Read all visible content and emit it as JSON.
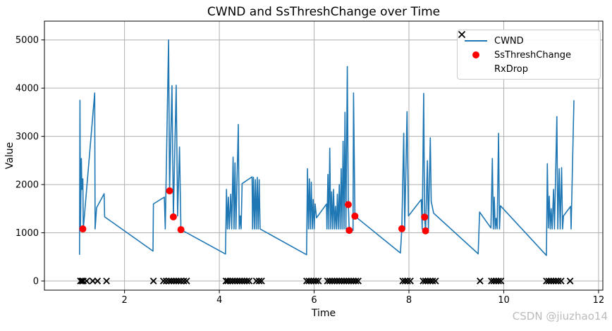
{
  "watermark": {
    "text": "CSDN @jiuzhao14",
    "color": "#b9bbbd"
  },
  "style": {
    "grid_color": "#b0b0b0",
    "frame_color": "#000000",
    "tick_label_color": "#000000",
    "background": "#ffffff"
  },
  "chart_data": {
    "type": "line",
    "title": "CWND and SsThreshChange over Time",
    "xlabel": "Time",
    "ylabel": "Value",
    "xlim": [
      0.31,
      12.09
    ],
    "ylim": [
      -190,
      5390
    ],
    "xticks": [
      2,
      4,
      6,
      8,
      10,
      12
    ],
    "yticks": [
      0,
      1000,
      2000,
      3000,
      4000,
      5000
    ],
    "grid": true,
    "legend": {
      "position": "top-right",
      "entries": [
        {
          "label": "CWND",
          "marker": "line",
          "color": "#1f77b4"
        },
        {
          "label": "SsThreshChange",
          "marker": "dot",
          "color": "#ff0000"
        },
        {
          "label": "RxDrop",
          "marker": "x",
          "color": "#000000"
        }
      ]
    },
    "series": [
      {
        "name": "CWND",
        "type": "line",
        "color": "#1f77b4",
        "line_width": 1.6,
        "points": [
          [
            1.05,
            545
          ],
          [
            1.06,
            3750
          ],
          [
            1.07,
            1070
          ],
          [
            1.09,
            2540
          ],
          [
            1.1,
            1900
          ],
          [
            1.12,
            2120
          ],
          [
            1.13,
            1070
          ],
          [
            1.37,
            3900
          ],
          [
            1.38,
            1080
          ],
          [
            1.41,
            1520
          ],
          [
            1.57,
            1810
          ],
          [
            1.58,
            1330
          ],
          [
            2.6,
            620
          ],
          [
            2.61,
            1600
          ],
          [
            2.84,
            1740
          ],
          [
            2.86,
            1080
          ],
          [
            2.93,
            5000
          ],
          [
            2.95,
            1870
          ],
          [
            3.0,
            4050
          ],
          [
            3.03,
            1330
          ],
          [
            3.09,
            4060
          ],
          [
            3.12,
            1350
          ],
          [
            3.16,
            2780
          ],
          [
            3.19,
            1065
          ],
          [
            4.13,
            560
          ],
          [
            4.15,
            1900
          ],
          [
            4.17,
            1080
          ],
          [
            4.19,
            1740
          ],
          [
            4.21,
            1080
          ],
          [
            4.24,
            1800
          ],
          [
            4.26,
            1080
          ],
          [
            4.29,
            2570
          ],
          [
            4.31,
            1080
          ],
          [
            4.33,
            2450
          ],
          [
            4.35,
            1080
          ],
          [
            4.4,
            3245
          ],
          [
            4.42,
            1080
          ],
          [
            4.44,
            1350
          ],
          [
            4.46,
            1080
          ],
          [
            4.48,
            2020
          ],
          [
            4.69,
            2160
          ],
          [
            4.7,
            1080
          ],
          [
            4.72,
            2150
          ],
          [
            4.74,
            1080
          ],
          [
            4.76,
            2100
          ],
          [
            4.78,
            1080
          ],
          [
            4.8,
            2150
          ],
          [
            4.82,
            1080
          ],
          [
            4.84,
            2100
          ],
          [
            4.86,
            1080
          ],
          [
            5.84,
            545
          ],
          [
            5.86,
            2330
          ],
          [
            5.88,
            1080
          ],
          [
            5.9,
            2120
          ],
          [
            5.92,
            1080
          ],
          [
            5.94,
            2050
          ],
          [
            5.96,
            1080
          ],
          [
            5.98,
            1690
          ],
          [
            6.0,
            1080
          ],
          [
            6.02,
            1600
          ],
          [
            6.05,
            1310
          ],
          [
            6.26,
            1595
          ],
          [
            6.27,
            1080
          ],
          [
            6.29,
            2210
          ],
          [
            6.31,
            1080
          ],
          [
            6.33,
            2755
          ],
          [
            6.35,
            1080
          ],
          [
            6.37,
            1850
          ],
          [
            6.39,
            1080
          ],
          [
            6.41,
            1900
          ],
          [
            6.43,
            1080
          ],
          [
            6.45,
            1550
          ],
          [
            6.47,
            1080
          ],
          [
            6.49,
            1800
          ],
          [
            6.51,
            1080
          ],
          [
            6.53,
            2000
          ],
          [
            6.55,
            1080
          ],
          [
            6.57,
            2330
          ],
          [
            6.59,
            1080
          ],
          [
            6.61,
            2900
          ],
          [
            6.63,
            1080
          ],
          [
            6.65,
            3500
          ],
          [
            6.67,
            1080
          ],
          [
            6.7,
            4450
          ],
          [
            6.72,
            1585
          ],
          [
            6.74,
            1050
          ],
          [
            6.82,
            1050
          ],
          [
            6.83,
            3900
          ],
          [
            6.86,
            1345
          ],
          [
            7.82,
            580
          ],
          [
            7.85,
            1084
          ],
          [
            7.89,
            3065
          ],
          [
            7.91,
            1100
          ],
          [
            7.96,
            3512
          ],
          [
            7.99,
            1350
          ],
          [
            8.26,
            1690
          ],
          [
            8.28,
            1080
          ],
          [
            8.31,
            3890
          ],
          [
            8.33,
            1325
          ],
          [
            8.35,
            1040
          ],
          [
            8.39,
            2495
          ],
          [
            8.41,
            1080
          ],
          [
            8.45,
            2970
          ],
          [
            8.47,
            1650
          ],
          [
            8.52,
            1406
          ],
          [
            9.46,
            564
          ],
          [
            9.49,
            1430
          ],
          [
            9.73,
            1100
          ],
          [
            9.76,
            2540
          ],
          [
            9.78,
            1080
          ],
          [
            9.8,
            1740
          ],
          [
            9.82,
            1080
          ],
          [
            9.84,
            1300
          ],
          [
            9.86,
            1080
          ],
          [
            9.89,
            3065
          ],
          [
            9.91,
            1080
          ],
          [
            9.93,
            1560
          ],
          [
            10.9,
            530
          ],
          [
            10.92,
            2434
          ],
          [
            10.94,
            1100
          ],
          [
            10.96,
            1760
          ],
          [
            10.98,
            1080
          ],
          [
            11.0,
            1500
          ],
          [
            11.02,
            1080
          ],
          [
            11.05,
            1900
          ],
          [
            11.07,
            1080
          ],
          [
            11.12,
            3410
          ],
          [
            11.14,
            1080
          ],
          [
            11.17,
            2330
          ],
          [
            11.19,
            1080
          ],
          [
            11.22,
            2350
          ],
          [
            11.24,
            1080
          ],
          [
            11.26,
            1350
          ],
          [
            11.41,
            1548
          ],
          [
            11.42,
            1080
          ],
          [
            11.48,
            3750
          ]
        ]
      },
      {
        "name": "SsThreshChange",
        "type": "scatter",
        "marker": "circle",
        "color": "#ff0000",
        "size": 5,
        "points": [
          [
            1.12,
            1080
          ],
          [
            2.95,
            1870
          ],
          [
            3.03,
            1330
          ],
          [
            3.19,
            1065
          ],
          [
            6.72,
            1585
          ],
          [
            6.74,
            1050
          ],
          [
            6.86,
            1345
          ],
          [
            7.85,
            1084
          ],
          [
            8.33,
            1325
          ],
          [
            8.35,
            1040
          ]
        ]
      },
      {
        "name": "RxDrop",
        "type": "scatter",
        "marker": "x",
        "color": "#000000",
        "size": 4.2,
        "points": [
          [
            1.07,
            0
          ],
          [
            1.1,
            0
          ],
          [
            1.13,
            0
          ],
          [
            1.2,
            0
          ],
          [
            1.33,
            0
          ],
          [
            1.43,
            0
          ],
          [
            1.62,
            0
          ],
          [
            2.61,
            0
          ],
          [
            2.82,
            0
          ],
          [
            2.88,
            0
          ],
          [
            2.94,
            0
          ],
          [
            2.99,
            0
          ],
          [
            3.04,
            0
          ],
          [
            3.09,
            0
          ],
          [
            3.14,
            0
          ],
          [
            3.19,
            0
          ],
          [
            3.25,
            0
          ],
          [
            3.31,
            0
          ],
          [
            4.14,
            0
          ],
          [
            4.18,
            0
          ],
          [
            4.23,
            0
          ],
          [
            4.28,
            0
          ],
          [
            4.33,
            0
          ],
          [
            4.38,
            0
          ],
          [
            4.43,
            0
          ],
          [
            4.48,
            0
          ],
          [
            4.53,
            0
          ],
          [
            4.58,
            0
          ],
          [
            4.63,
            0
          ],
          [
            4.78,
            0
          ],
          [
            4.84,
            0
          ],
          [
            4.89,
            0
          ],
          [
            5.84,
            0
          ],
          [
            5.89,
            0
          ],
          [
            5.94,
            0
          ],
          [
            5.99,
            0
          ],
          [
            6.04,
            0
          ],
          [
            6.09,
            0
          ],
          [
            6.28,
            0
          ],
          [
            6.33,
            0
          ],
          [
            6.38,
            0
          ],
          [
            6.43,
            0
          ],
          [
            6.48,
            0
          ],
          [
            6.53,
            0
          ],
          [
            6.58,
            0
          ],
          [
            6.63,
            0
          ],
          [
            6.68,
            0
          ],
          [
            6.73,
            0
          ],
          [
            6.78,
            0
          ],
          [
            6.83,
            0
          ],
          [
            6.88,
            0
          ],
          [
            6.93,
            0
          ],
          [
            7.87,
            0
          ],
          [
            7.92,
            0
          ],
          [
            7.97,
            0
          ],
          [
            8.03,
            0
          ],
          [
            8.3,
            0
          ],
          [
            8.35,
            0
          ],
          [
            8.4,
            0
          ],
          [
            8.45,
            0
          ],
          [
            8.5,
            0
          ],
          [
            8.56,
            0
          ],
          [
            9.5,
            0
          ],
          [
            9.74,
            0
          ],
          [
            9.79,
            0
          ],
          [
            9.84,
            0
          ],
          [
            9.89,
            0
          ],
          [
            9.94,
            0
          ],
          [
            10.9,
            0
          ],
          [
            10.95,
            0
          ],
          [
            11.0,
            0
          ],
          [
            11.05,
            0
          ],
          [
            11.1,
            0
          ],
          [
            11.15,
            0
          ],
          [
            11.21,
            0
          ],
          [
            11.4,
            0
          ]
        ]
      }
    ]
  }
}
